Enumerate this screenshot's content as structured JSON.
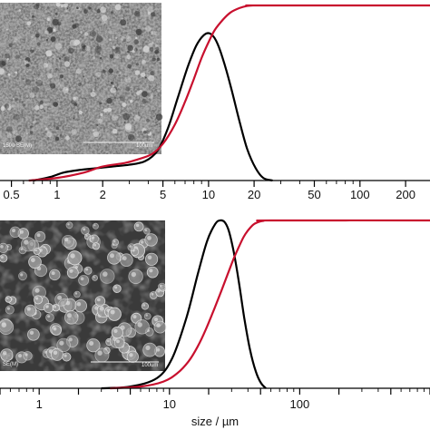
{
  "chart_data": [
    {
      "type": "line",
      "x_scale": "log",
      "xlim": [
        0.42,
        290
      ],
      "ylim": [
        0,
        1
      ],
      "grid": false,
      "tick_labels": [
        "0.5",
        "1",
        "2",
        "5",
        "10",
        "20",
        "50",
        "100",
        "200"
      ],
      "tick_values": [
        0.5,
        1,
        2,
        5,
        10,
        20,
        50,
        100,
        200
      ],
      "series": [
        {
          "color": "#000000",
          "x": [
            0.7,
            0.9,
            1.1,
            1.4,
            1.8,
            2.3,
            3.0,
            3.8,
            4.6,
            5.4,
            6.3,
            7.3,
            8.3,
            9.3,
            10.2,
            11.2,
            12.4,
            14.0,
            16.0,
            18.0,
            20.5,
            23.0,
            26.5
          ],
          "y": [
            0.0,
            0.02,
            0.045,
            0.06,
            0.07,
            0.08,
            0.09,
            0.11,
            0.17,
            0.3,
            0.48,
            0.65,
            0.77,
            0.83,
            0.84,
            0.8,
            0.7,
            0.54,
            0.34,
            0.18,
            0.07,
            0.015,
            0.0
          ]
        },
        {
          "color": "#c8102e",
          "x": [
            0.65,
            1.0,
            1.5,
            2.0,
            2.8,
            3.4,
            4.2,
            5.0,
            6.0,
            7.0,
            8.0,
            9.0,
            10.0,
            11.0,
            12.5,
            14.0,
            16.0,
            18.0,
            20.0,
            22.0,
            290
          ],
          "y": [
            0.0,
            0.015,
            0.045,
            0.08,
            0.1,
            0.12,
            0.15,
            0.21,
            0.32,
            0.45,
            0.58,
            0.7,
            0.79,
            0.86,
            0.92,
            0.96,
            0.985,
            0.997,
            1.0,
            1.0,
            1.0
          ]
        }
      ],
      "inset": {
        "image": "SEM micrograph of irregular aggregated particles",
        "caption_left": "1500 SE(M)",
        "scale_label": "100um"
      }
    },
    {
      "type": "line",
      "x_scale": "log",
      "xlim": [
        0.5,
        1000
      ],
      "ylim": [
        0,
        1
      ],
      "grid": false,
      "xlabel": "size / µm",
      "tick_labels": [
        "1",
        "10",
        "100"
      ],
      "tick_values": [
        1,
        10,
        100
      ],
      "series": [
        {
          "color": "#000000",
          "x": [
            3.0,
            5.0,
            8.0,
            10.5,
            13.5,
            16.5,
            19.5,
            22.5,
            24.5,
            26.5,
            28.5,
            31.0,
            34.0,
            37.5,
            41.5,
            46.0,
            50.5,
            55.0
          ],
          "y": [
            0.0,
            0.01,
            0.06,
            0.18,
            0.42,
            0.68,
            0.88,
            0.98,
            1.0,
            0.99,
            0.94,
            0.82,
            0.64,
            0.42,
            0.23,
            0.1,
            0.03,
            0.0
          ]
        },
        {
          "color": "#c8102e",
          "x": [
            3.5,
            6.0,
            9.0,
            11.5,
            14.0,
            16.5,
            19.0,
            22.0,
            25.0,
            28.0,
            31.0,
            34.0,
            37.0,
            40.0,
            44.0,
            48.0,
            53.0,
            60.0,
            1000
          ],
          "y": [
            0.0,
            0.01,
            0.04,
            0.09,
            0.16,
            0.25,
            0.35,
            0.47,
            0.58,
            0.68,
            0.77,
            0.84,
            0.9,
            0.94,
            0.975,
            0.99,
            0.998,
            1.0,
            1.0
          ]
        }
      ],
      "inset": {
        "image": "SEM micrograph of rounded particles",
        "caption_left": "SE(M)",
        "scale_label": "100um"
      }
    }
  ]
}
